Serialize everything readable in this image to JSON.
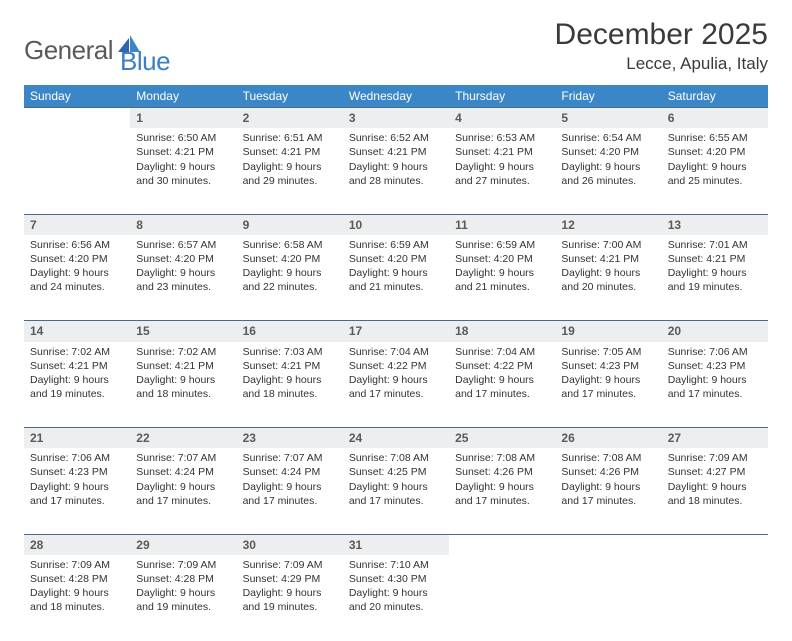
{
  "brand": {
    "part1": "General",
    "part2": "Blue"
  },
  "title": "December 2025",
  "location": "Lecce, Apulia, Italy",
  "colors": {
    "header_bg": "#3b86c7",
    "header_text": "#ffffff",
    "daynum_bg": "#eceeef",
    "rule": "#4a6a8a",
    "text": "#333333",
    "logo_gray": "#5a5a5a",
    "logo_blue": "#3b7fc4"
  },
  "weekdays": [
    "Sunday",
    "Monday",
    "Tuesday",
    "Wednesday",
    "Thursday",
    "Friday",
    "Saturday"
  ],
  "weeks": [
    [
      null,
      {
        "n": "1",
        "sr": "Sunrise: 6:50 AM",
        "ss": "Sunset: 4:21 PM",
        "dl": "Daylight: 9 hours and 30 minutes."
      },
      {
        "n": "2",
        "sr": "Sunrise: 6:51 AM",
        "ss": "Sunset: 4:21 PM",
        "dl": "Daylight: 9 hours and 29 minutes."
      },
      {
        "n": "3",
        "sr": "Sunrise: 6:52 AM",
        "ss": "Sunset: 4:21 PM",
        "dl": "Daylight: 9 hours and 28 minutes."
      },
      {
        "n": "4",
        "sr": "Sunrise: 6:53 AM",
        "ss": "Sunset: 4:21 PM",
        "dl": "Daylight: 9 hours and 27 minutes."
      },
      {
        "n": "5",
        "sr": "Sunrise: 6:54 AM",
        "ss": "Sunset: 4:20 PM",
        "dl": "Daylight: 9 hours and 26 minutes."
      },
      {
        "n": "6",
        "sr": "Sunrise: 6:55 AM",
        "ss": "Sunset: 4:20 PM",
        "dl": "Daylight: 9 hours and 25 minutes."
      }
    ],
    [
      {
        "n": "7",
        "sr": "Sunrise: 6:56 AM",
        "ss": "Sunset: 4:20 PM",
        "dl": "Daylight: 9 hours and 24 minutes."
      },
      {
        "n": "8",
        "sr": "Sunrise: 6:57 AM",
        "ss": "Sunset: 4:20 PM",
        "dl": "Daylight: 9 hours and 23 minutes."
      },
      {
        "n": "9",
        "sr": "Sunrise: 6:58 AM",
        "ss": "Sunset: 4:20 PM",
        "dl": "Daylight: 9 hours and 22 minutes."
      },
      {
        "n": "10",
        "sr": "Sunrise: 6:59 AM",
        "ss": "Sunset: 4:20 PM",
        "dl": "Daylight: 9 hours and 21 minutes."
      },
      {
        "n": "11",
        "sr": "Sunrise: 6:59 AM",
        "ss": "Sunset: 4:20 PM",
        "dl": "Daylight: 9 hours and 21 minutes."
      },
      {
        "n": "12",
        "sr": "Sunrise: 7:00 AM",
        "ss": "Sunset: 4:21 PM",
        "dl": "Daylight: 9 hours and 20 minutes."
      },
      {
        "n": "13",
        "sr": "Sunrise: 7:01 AM",
        "ss": "Sunset: 4:21 PM",
        "dl": "Daylight: 9 hours and 19 minutes."
      }
    ],
    [
      {
        "n": "14",
        "sr": "Sunrise: 7:02 AM",
        "ss": "Sunset: 4:21 PM",
        "dl": "Daylight: 9 hours and 19 minutes."
      },
      {
        "n": "15",
        "sr": "Sunrise: 7:02 AM",
        "ss": "Sunset: 4:21 PM",
        "dl": "Daylight: 9 hours and 18 minutes."
      },
      {
        "n": "16",
        "sr": "Sunrise: 7:03 AM",
        "ss": "Sunset: 4:21 PM",
        "dl": "Daylight: 9 hours and 18 minutes."
      },
      {
        "n": "17",
        "sr": "Sunrise: 7:04 AM",
        "ss": "Sunset: 4:22 PM",
        "dl": "Daylight: 9 hours and 17 minutes."
      },
      {
        "n": "18",
        "sr": "Sunrise: 7:04 AM",
        "ss": "Sunset: 4:22 PM",
        "dl": "Daylight: 9 hours and 17 minutes."
      },
      {
        "n": "19",
        "sr": "Sunrise: 7:05 AM",
        "ss": "Sunset: 4:23 PM",
        "dl": "Daylight: 9 hours and 17 minutes."
      },
      {
        "n": "20",
        "sr": "Sunrise: 7:06 AM",
        "ss": "Sunset: 4:23 PM",
        "dl": "Daylight: 9 hours and 17 minutes."
      }
    ],
    [
      {
        "n": "21",
        "sr": "Sunrise: 7:06 AM",
        "ss": "Sunset: 4:23 PM",
        "dl": "Daylight: 9 hours and 17 minutes."
      },
      {
        "n": "22",
        "sr": "Sunrise: 7:07 AM",
        "ss": "Sunset: 4:24 PM",
        "dl": "Daylight: 9 hours and 17 minutes."
      },
      {
        "n": "23",
        "sr": "Sunrise: 7:07 AM",
        "ss": "Sunset: 4:24 PM",
        "dl": "Daylight: 9 hours and 17 minutes."
      },
      {
        "n": "24",
        "sr": "Sunrise: 7:08 AM",
        "ss": "Sunset: 4:25 PM",
        "dl": "Daylight: 9 hours and 17 minutes."
      },
      {
        "n": "25",
        "sr": "Sunrise: 7:08 AM",
        "ss": "Sunset: 4:26 PM",
        "dl": "Daylight: 9 hours and 17 minutes."
      },
      {
        "n": "26",
        "sr": "Sunrise: 7:08 AM",
        "ss": "Sunset: 4:26 PM",
        "dl": "Daylight: 9 hours and 17 minutes."
      },
      {
        "n": "27",
        "sr": "Sunrise: 7:09 AM",
        "ss": "Sunset: 4:27 PM",
        "dl": "Daylight: 9 hours and 18 minutes."
      }
    ],
    [
      {
        "n": "28",
        "sr": "Sunrise: 7:09 AM",
        "ss": "Sunset: 4:28 PM",
        "dl": "Daylight: 9 hours and 18 minutes."
      },
      {
        "n": "29",
        "sr": "Sunrise: 7:09 AM",
        "ss": "Sunset: 4:28 PM",
        "dl": "Daylight: 9 hours and 19 minutes."
      },
      {
        "n": "30",
        "sr": "Sunrise: 7:09 AM",
        "ss": "Sunset: 4:29 PM",
        "dl": "Daylight: 9 hours and 19 minutes."
      },
      {
        "n": "31",
        "sr": "Sunrise: 7:10 AM",
        "ss": "Sunset: 4:30 PM",
        "dl": "Daylight: 9 hours and 20 minutes."
      },
      null,
      null,
      null
    ]
  ]
}
